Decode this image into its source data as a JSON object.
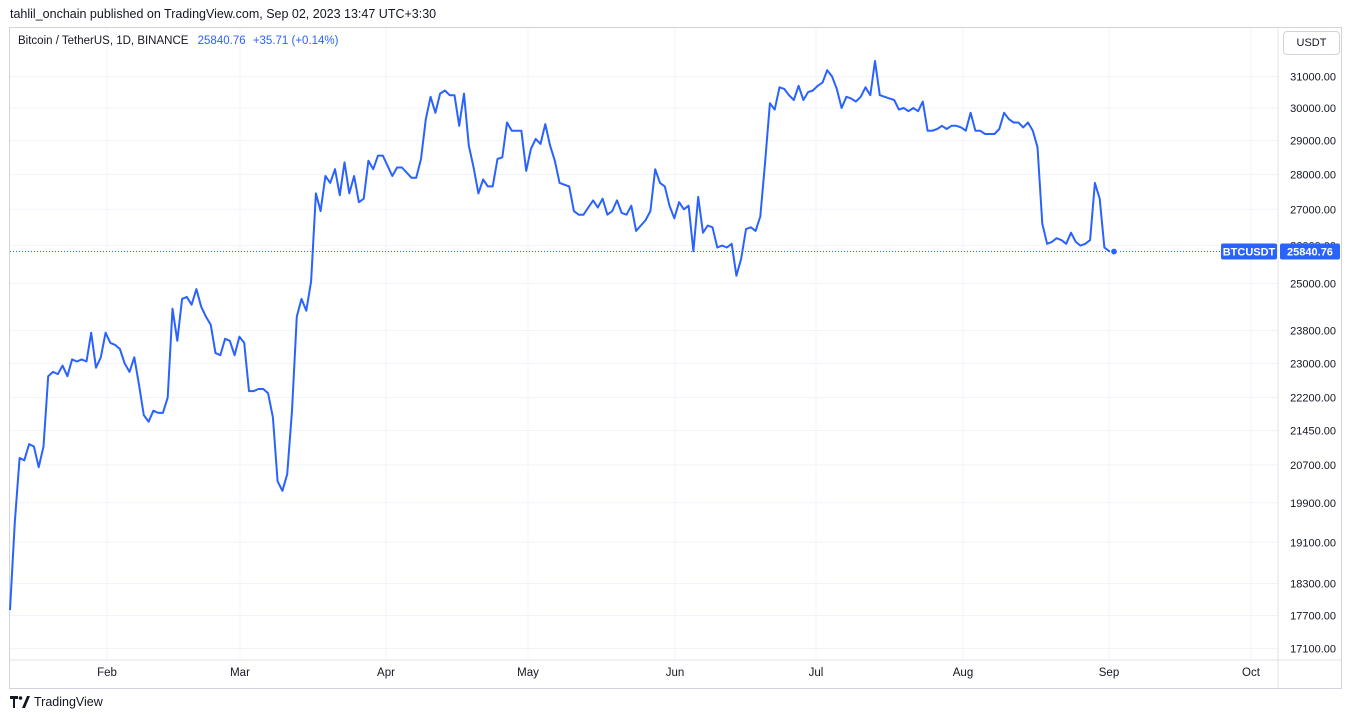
{
  "header": {
    "published_by": "tahlil_onchain published on TradingView.com, Sep 02, 2023 13:47 UTC+3:30"
  },
  "legend": {
    "symbol": "Bitcoin / TetherUS, 1D, BINANCE",
    "last": "25840.76",
    "change": "+35.71 (+0.14%)"
  },
  "currency_button": "USDT",
  "footer": {
    "brand": "TradingView"
  },
  "colors": {
    "line": "#2962ff",
    "grid": "#f0f3fa",
    "axis_text": "#131722",
    "badge": "#2962ff"
  },
  "chart_data": {
    "type": "line",
    "series": [
      {
        "name": "BTCUSDT",
        "values": [
          17800,
          19500,
          20850,
          20800,
          21150,
          21100,
          20650,
          21100,
          22700,
          22800,
          22750,
          22950,
          22700,
          23100,
          23050,
          23100,
          23050,
          23750,
          22900,
          23150,
          23750,
          23500,
          23450,
          23350,
          23000,
          22800,
          23150,
          22500,
          21800,
          21650,
          21900,
          21850,
          21850,
          22200,
          24350,
          23550,
          24600,
          24650,
          24450,
          24850,
          24400,
          24150,
          23950,
          23250,
          23200,
          23600,
          23550,
          23200,
          23650,
          23500,
          22350,
          22350,
          22400,
          22400,
          22300,
          21750,
          20350,
          20150,
          20500,
          21900,
          24150,
          24600,
          24300,
          25050,
          27450,
          26950,
          27950,
          27750,
          28150,
          27400,
          28350,
          27450,
          27950,
          27200,
          27300,
          28400,
          28150,
          28550,
          28550,
          28250,
          27950,
          28200,
          28200,
          28050,
          27900,
          27900,
          28450,
          29650,
          30350,
          29850,
          30450,
          30550,
          30400,
          30400,
          29450,
          30450,
          28850,
          28200,
          27450,
          27850,
          27650,
          27650,
          28450,
          28500,
          29550,
          29300,
          29300,
          29300,
          28100,
          28750,
          29050,
          28900,
          29500,
          28850,
          28400,
          27750,
          27700,
          27650,
          26950,
          26850,
          26850,
          27050,
          27250,
          27050,
          27300,
          26850,
          26950,
          27250,
          26900,
          26850,
          27100,
          26400,
          26550,
          26700,
          26950,
          28150,
          27750,
          27650,
          27100,
          26750,
          27200,
          27000,
          27100,
          25850,
          27350,
          26350,
          26550,
          26500,
          25950,
          26000,
          25950,
          26050,
          25200,
          25650,
          26450,
          26500,
          26400,
          26800,
          28350,
          30150,
          29950,
          30650,
          30600,
          30400,
          30250,
          30700,
          30250,
          30500,
          30550,
          30700,
          30800,
          31200,
          31000,
          30600,
          30000,
          30350,
          30300,
          30200,
          30350,
          30650,
          30400,
          31500,
          30400,
          30350,
          30300,
          30250,
          29950,
          30000,
          29900,
          30000,
          29900,
          30200,
          29300,
          29300,
          29350,
          29450,
          29350,
          29450,
          29450,
          29400,
          29300,
          29850,
          29300,
          29300,
          29200,
          29200,
          29200,
          29350,
          29850,
          29650,
          29550,
          29550,
          29400,
          29550,
          29300,
          28800,
          26600,
          26050,
          26100,
          26200,
          26150,
          26050,
          26350,
          26100,
          26000,
          26050,
          26150,
          27750,
          27300,
          25950,
          25850,
          25840.76
        ]
      }
    ],
    "x_ticks": [
      "Feb",
      "Mar",
      "Apr",
      "May",
      "Jun",
      "Jul",
      "Aug",
      "Sep",
      "Oct"
    ],
    "y_ticks": [
      "31000.00",
      "30000.00",
      "29000.00",
      "28000.00",
      "27000.00",
      "26000.00",
      "25000.00",
      "23800.00",
      "23000.00",
      "22200.00",
      "21450.00",
      "20700.00",
      "19900.00",
      "19100.00",
      "18300.00",
      "17700.00",
      "17100.00"
    ],
    "y_scale": "log",
    "ylim": [
      16900,
      32600
    ],
    "last_price_label": {
      "symbol": "BTCUSDT",
      "price": "25840.76"
    },
    "grid": true,
    "legend_position": "top-left"
  }
}
